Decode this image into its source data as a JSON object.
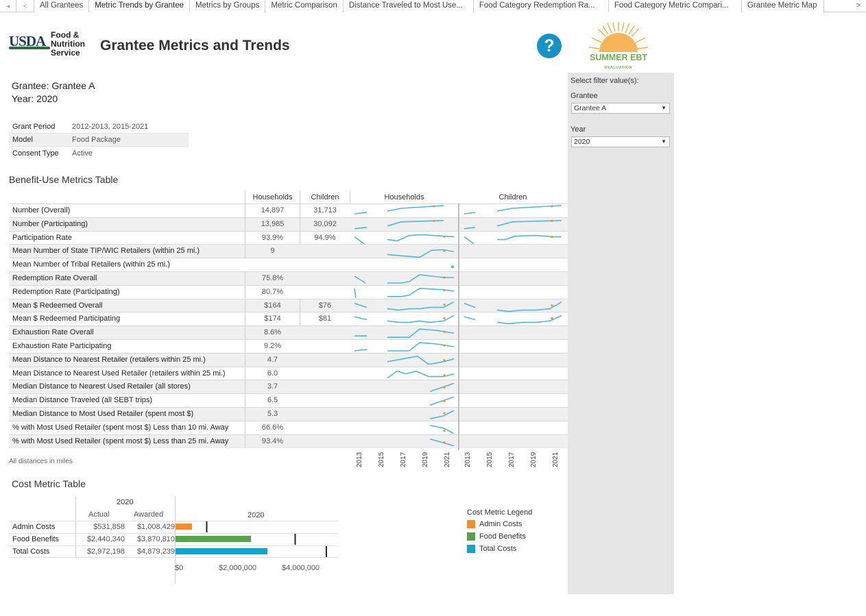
{
  "tabs": [
    "All Grantees",
    "Metric Trends by Grantee",
    "Metrics by Groups",
    "Metric Comparison",
    "Distance Traveled to Most Use...",
    "Food Category Redemption Ra...",
    "Food Category Metric Compari...",
    "Grantee Metric Map"
  ],
  "active_tab": 1,
  "logo": {
    "usda": "USDA",
    "fns_line1": "Food &",
    "fns_line2": "Nutrition",
    "fns_line3": "Service"
  },
  "page_title": "Grantee Metrics and Trends",
  "help_icon": "?",
  "sebt_logo": {
    "text": "SUMMER EBT",
    "sub": "EVALUATION"
  },
  "filters": {
    "title": "Select filter value(s):",
    "grantee_label": "Grantee",
    "grantee_value": "Grantee A",
    "year_label": "Year",
    "year_value": "2020"
  },
  "grantee_line": "Grantee: Grantee A",
  "year_line": "Year: 2020",
  "info": [
    {
      "k": "Grant Period",
      "v": "2012-2013, 2015-2021"
    },
    {
      "k": "Model",
      "v": "Food Package"
    },
    {
      "k": "Consent Type",
      "v": "Active"
    }
  ],
  "benefit_title": "Benefit-Use Metrics Table",
  "benefit_headers": {
    "households": "Households",
    "children": "Children",
    "spark_households": "Households",
    "spark_children": "Children"
  },
  "metrics": [
    {
      "name": "Number (Overall)",
      "hh": "14,897",
      "ch": "31,713"
    },
    {
      "name": "Number (Participating)",
      "hh": "13,985",
      "ch": "30,092"
    },
    {
      "name": "Participation Rate",
      "hh": "93.9%",
      "ch": "94.9%"
    },
    {
      "name": "Mean Number of State TIP/WIC Retailers (within 25 mi.)",
      "hh": "9",
      "ch": ""
    },
    {
      "name": "Mean Number of Tribal Retailers (within 25 mi.)",
      "hh": "",
      "ch": ""
    },
    {
      "name": "Redemption Rate Overall",
      "hh": "75.8%",
      "ch": ""
    },
    {
      "name": "Redemption Rate (Participating)",
      "hh": "80.7%",
      "ch": ""
    },
    {
      "name": "Mean $ Redeemed Overall",
      "hh": "$164",
      "ch": "$76"
    },
    {
      "name": "Mean $ Redeemed Participating",
      "hh": "$174",
      "ch": "$81"
    },
    {
      "name": "Exhaustion Rate Overall",
      "hh": "8.6%",
      "ch": ""
    },
    {
      "name": "Exhaustion Rate Participating",
      "hh": "9.2%",
      "ch": ""
    },
    {
      "name": "Mean Distance to Nearest Retailer (retailers within 25 mi.)",
      "hh": "4.7",
      "ch": ""
    },
    {
      "name": "Mean Distance to Nearest Used Retailer (retailers within 25 mi.)",
      "hh": "6.0",
      "ch": ""
    },
    {
      "name": "Median Distance to Nearest Used Retailer (all stores)",
      "hh": "3.7",
      "ch": ""
    },
    {
      "name": "Median Distance Traveled (all SEBT trips)",
      "hh": "6.5",
      "ch": ""
    },
    {
      "name": "Median Distance to Most Used Retailer (spent most $)",
      "hh": "5.3",
      "ch": ""
    },
    {
      "name": "% with Most Used Retailer (spent most $) Less than 10 mi. Away",
      "hh": "66.6%",
      "ch": ""
    },
    {
      "name": "% with Most Used Retailer (spent most $) Less than 25 mi. Away",
      "hh": "93.4%",
      "ch": ""
    }
  ],
  "years_axis": [
    "2013",
    "2015",
    "2017",
    "2019",
    "2021"
  ],
  "distance_note": "All distances in miles",
  "cost_title": "Cost Metric Table",
  "cost": {
    "year_header": "2020",
    "actual_label": "Actual",
    "awarded_label": "Awarded",
    "chart_year": "2020",
    "rows": [
      {
        "name": "Admin Costs",
        "actual": "$531,858",
        "awarded": "$1,008,429",
        "actual_value": 531858,
        "awarded_value": 1008429,
        "color": "#f28e2b"
      },
      {
        "name": "Food Benefits",
        "actual": "$2,440,340",
        "awarded": "$3,870,810",
        "actual_value": 2440340,
        "awarded_value": 3870810,
        "color": "#59a14f"
      },
      {
        "name": "Total Costs",
        "actual": "$2,972,198",
        "awarded": "$4,879,239",
        "actual_value": 2972198,
        "awarded_value": 4879239,
        "color": "#17a2c9"
      }
    ],
    "axis": [
      "$0",
      "$2,000,000",
      "$4,000,000"
    ],
    "axis_max": 5000000
  },
  "legend": {
    "title": "Cost Metric Legend",
    "items": [
      {
        "label": "Admin Costs",
        "color": "#f28e2b"
      },
      {
        "label": "Food Benefits",
        "color": "#59a14f"
      },
      {
        "label": "Total Costs",
        "color": "#17a2c9"
      }
    ]
  }
}
